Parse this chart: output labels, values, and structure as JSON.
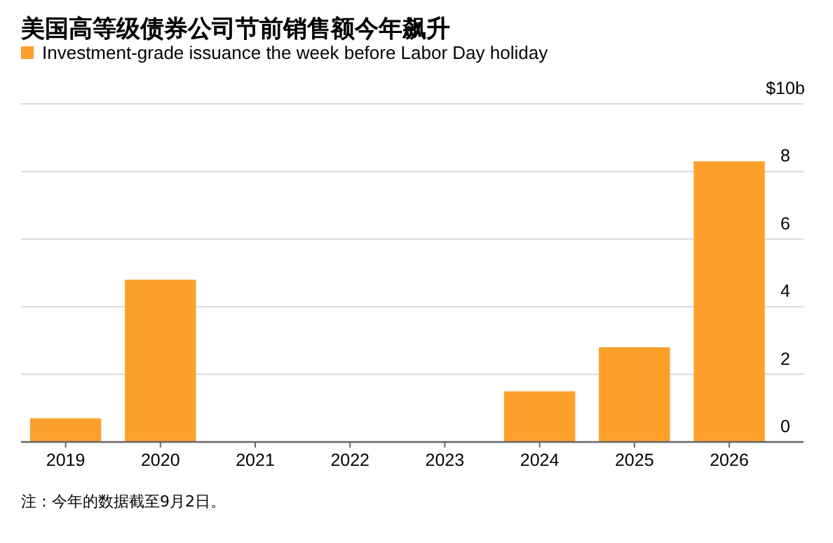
{
  "chart_data": {
    "type": "bar",
    "title": "美国高等级债券公司节前销售额今年飙升",
    "categories": [
      "2019",
      "2020",
      "2021",
      "2022",
      "2023",
      "2024",
      "2025",
      "2026"
    ],
    "series": [
      {
        "name": "Investment-grade issuance the week before Labor Day holiday",
        "color": "#fda02b",
        "values": [
          0.7,
          4.8,
          0,
          0,
          0,
          1.5,
          2.8,
          8.3
        ]
      }
    ],
    "ylim": [
      0,
      10
    ],
    "yticks": [
      0,
      2,
      4,
      6,
      8,
      {
        "value": 10,
        "label": "$10b"
      }
    ],
    "grid": "y",
    "legend": "top left",
    "annotations": [
      "注：今年的数据截至9月2日。"
    ]
  }
}
